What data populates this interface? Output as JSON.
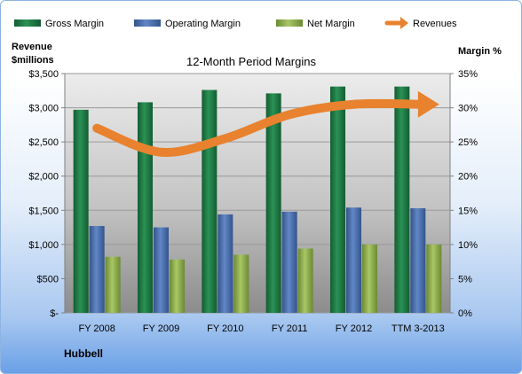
{
  "chart_data": {
    "type": "bar",
    "title": "12-Month Period Margins",
    "categories": [
      "FY 2008",
      "FY 2009",
      "FY 2010",
      "FY 2011",
      "FY 2012",
      "TTM 3-2013"
    ],
    "series": [
      {
        "name": "Gross Margin",
        "axis": "left",
        "values": [
          2970,
          3080,
          3260,
          3210,
          3310,
          3310
        ],
        "color": "#1d7a44"
      },
      {
        "name": "Operating Margin",
        "axis": "left",
        "values": [
          1270,
          1250,
          1440,
          1480,
          1540,
          1530
        ],
        "color": "#4a6fb0"
      },
      {
        "name": "Net Margin",
        "axis": "left",
        "values": [
          820,
          780,
          850,
          940,
          1000,
          1000
        ],
        "color": "#8fb24b"
      },
      {
        "name": "Revenues",
        "type": "line",
        "axis": "right",
        "values": [
          27,
          23.5,
          25.5,
          29,
          30.5,
          30.5
        ],
        "color": "#e8822e"
      }
    ],
    "y_left": {
      "label_lines": [
        "Revenue",
        "$millions"
      ],
      "min": 0,
      "max": 3500,
      "ticks": [
        "$-",
        "$500",
        "$1,000",
        "$1,500",
        "$2,000",
        "$2,500",
        "$3,000",
        "$3,500"
      ]
    },
    "y_right": {
      "label": "Margin %",
      "min": 0,
      "max": 35,
      "ticks": [
        "0%",
        "5%",
        "10%",
        "15%",
        "20%",
        "25%",
        "30%",
        "35%"
      ]
    },
    "legend": "top"
  },
  "company": "Hubbell"
}
